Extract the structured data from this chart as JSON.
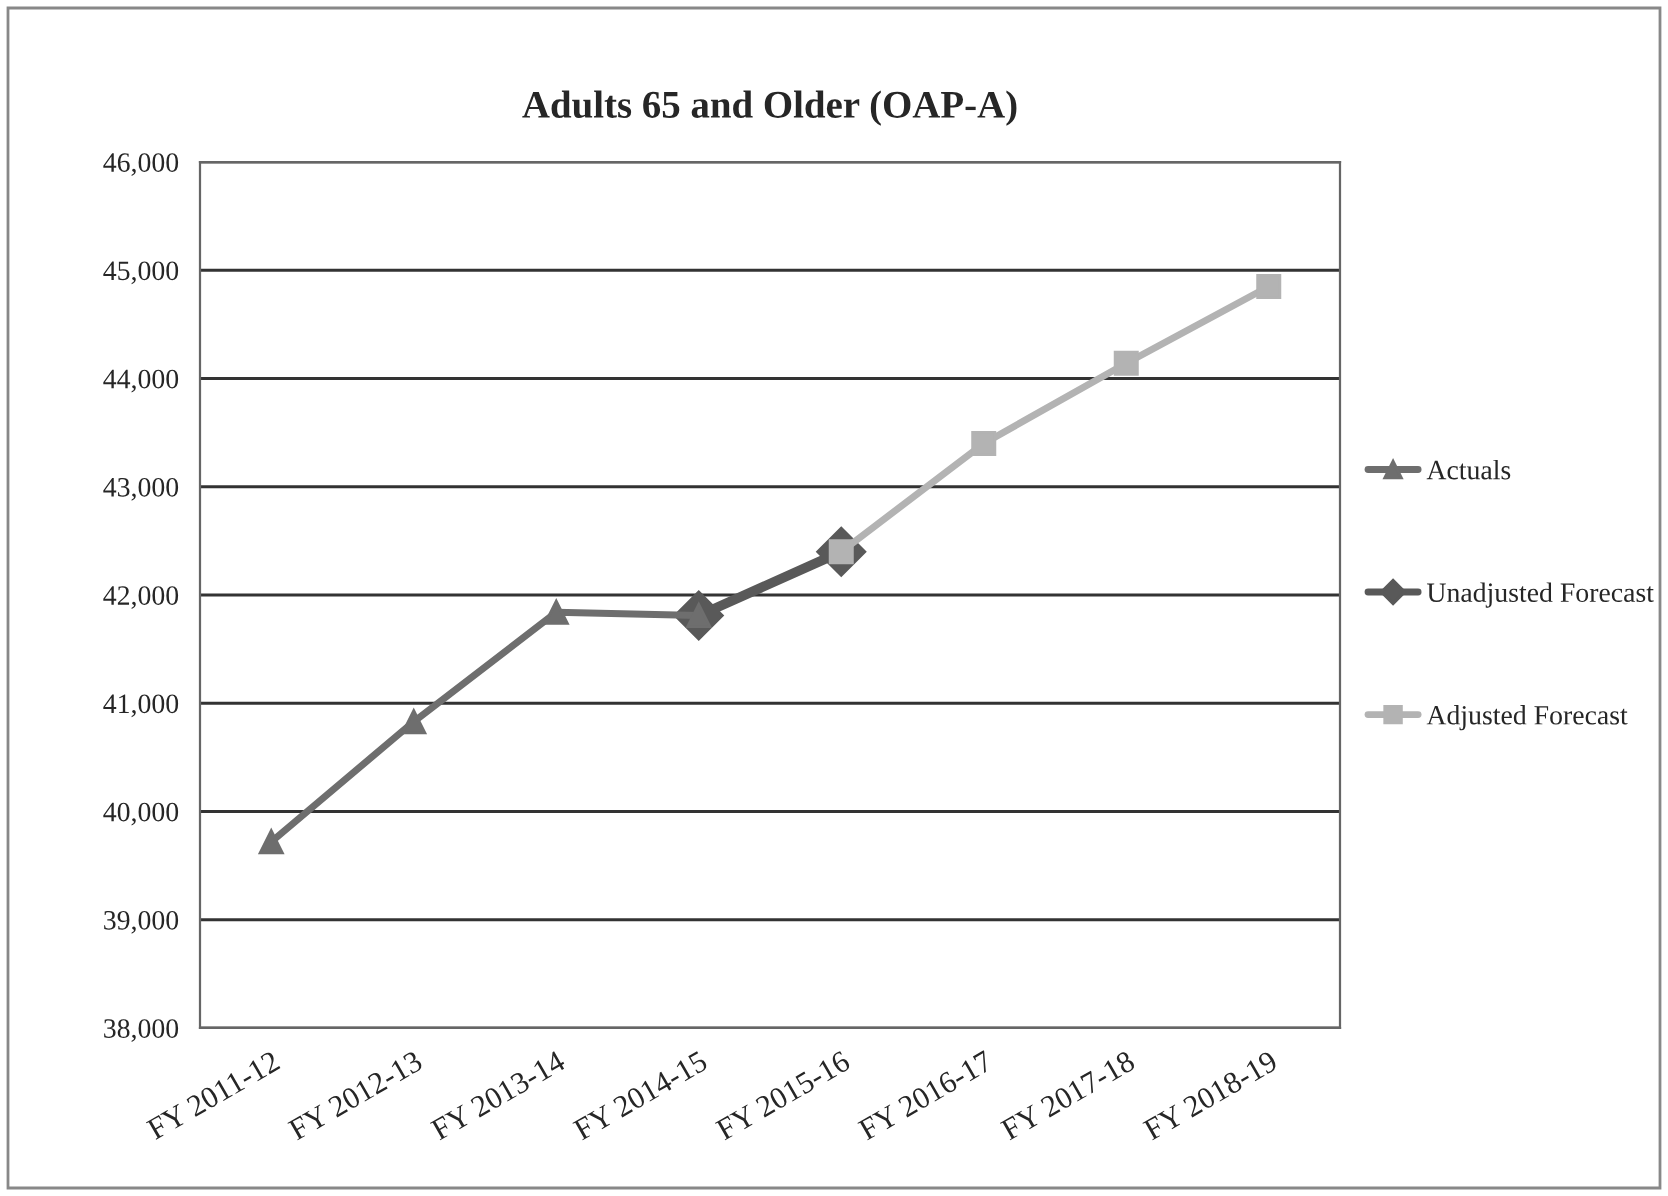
{
  "chart_data": {
    "type": "line",
    "title": "Adults 65 and Older (OAP-A)",
    "categories": [
      "FY 2011-12",
      "FY 2012-13",
      "FY 2013-14",
      "FY 2014-15",
      "FY 2015-16",
      "FY 2016-17",
      "FY 2017-18",
      "FY 2018-19"
    ],
    "series": [
      {
        "name": "Actuals",
        "color": "#6e6e6e",
        "marker": "triangle",
        "values": [
          39720,
          40830,
          41840,
          41810,
          null,
          null,
          null,
          null
        ]
      },
      {
        "name": "Unadjusted Forecast",
        "color": "#595959",
        "marker": "diamond",
        "values": [
          null,
          null,
          null,
          41810,
          42400,
          null,
          null,
          null
        ]
      },
      {
        "name": "Adjusted Forecast",
        "color": "#b3b3b3",
        "marker": "square",
        "values": [
          null,
          null,
          null,
          null,
          42400,
          43400,
          44140,
          44850
        ]
      }
    ],
    "ylim": [
      38000,
      46000
    ],
    "yticks": [
      {
        "value": 38000,
        "label": "38,000"
      },
      {
        "value": 39000,
        "label": "39,000"
      },
      {
        "value": 40000,
        "label": "40,000"
      },
      {
        "value": 41000,
        "label": "41,000"
      },
      {
        "value": 42000,
        "label": "42,000"
      },
      {
        "value": 43000,
        "label": "43,000"
      },
      {
        "value": 44000,
        "label": "44,000"
      },
      {
        "value": 45000,
        "label": "45,000"
      },
      {
        "value": 46000,
        "label": "46,000"
      }
    ],
    "grid": "y",
    "legend": "right"
  }
}
